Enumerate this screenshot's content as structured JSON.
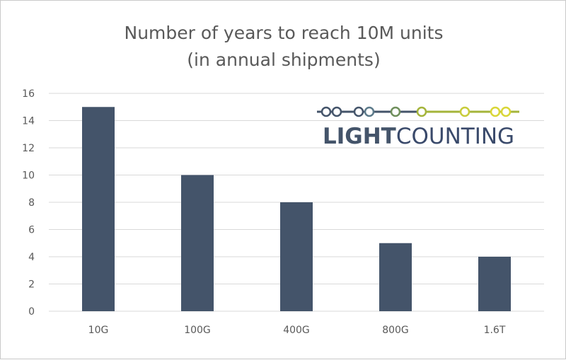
{
  "chart_data": {
    "type": "bar",
    "title_lines": [
      "Number of years to reach 10M units",
      "(in annual shipments)"
    ],
    "xlabel": "",
    "ylabel": "",
    "categories": [
      "10G",
      "100G",
      "400G",
      "800G",
      "1.6T"
    ],
    "values": [
      15,
      10,
      8,
      5,
      4
    ],
    "ylim": [
      0,
      16
    ],
    "yticks": [
      0,
      2,
      4,
      6,
      8,
      10,
      12,
      14,
      16
    ],
    "grid": true,
    "bar_color": "#44546A",
    "legend": "none"
  },
  "logo": {
    "text_light": "LIGHT",
    "text_counting": "COUNTING",
    "color_blue": "#44546A",
    "color_navy": "#3A4A6B",
    "color_green": "#A4B43A",
    "color_yellow": "#D9D637"
  }
}
